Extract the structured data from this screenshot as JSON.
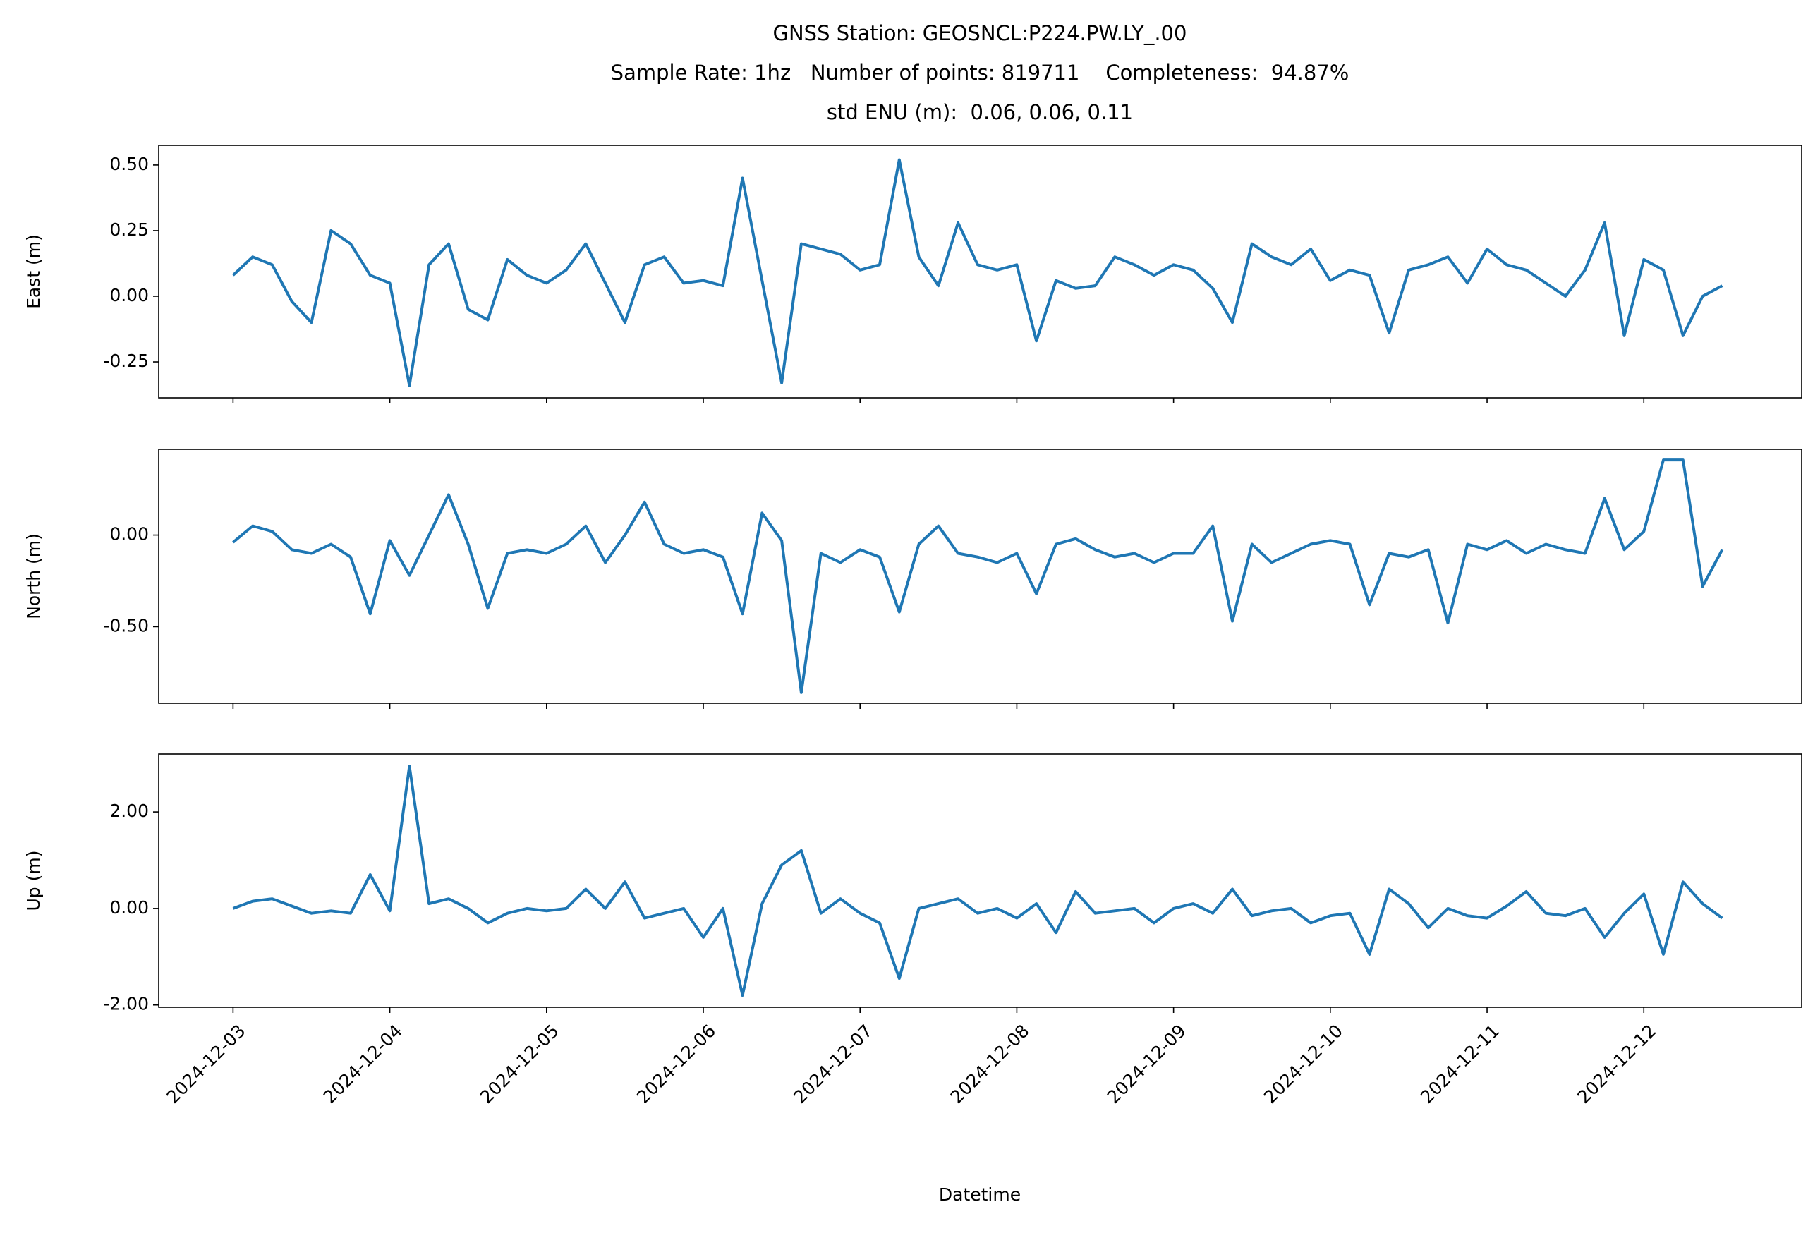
{
  "chart_data": [
    {
      "type": "line",
      "title": [
        "GNSS Station: GEOSNCL:P224.PW.LY_.00",
        "Sample Rate: 1hz   Number of points: 819711    Completeness:  94.87%",
        "std ENU (m):  0.06, 0.06, 0.11"
      ],
      "ylabel": "East (m)",
      "color": "#1f77b4",
      "x": [
        "2024-12-03 00:00",
        "2024-12-03 03:00",
        "2024-12-03 06:00",
        "2024-12-03 09:00",
        "2024-12-03 12:00",
        "2024-12-03 15:00",
        "2024-12-03 18:00",
        "2024-12-03 21:00",
        "2024-12-04 00:00",
        "2024-12-04 03:00",
        "2024-12-04 06:00",
        "2024-12-04 09:00",
        "2024-12-04 12:00",
        "2024-12-04 15:00",
        "2024-12-04 18:00",
        "2024-12-04 21:00",
        "2024-12-05 00:00",
        "2024-12-05 03:00",
        "2024-12-05 06:00",
        "2024-12-05 09:00",
        "2024-12-05 12:00",
        "2024-12-05 15:00",
        "2024-12-05 18:00",
        "2024-12-05 21:00",
        "2024-12-06 00:00",
        "2024-12-06 03:00",
        "2024-12-06 06:00",
        "2024-12-06 09:00",
        "2024-12-06 12:00",
        "2024-12-06 15:00",
        "2024-12-06 18:00",
        "2024-12-06 21:00",
        "2024-12-07 00:00",
        "2024-12-07 03:00",
        "2024-12-07 06:00",
        "2024-12-07 09:00",
        "2024-12-07 12:00",
        "2024-12-07 15:00",
        "2024-12-07 18:00",
        "2024-12-07 21:00",
        "2024-12-08 00:00",
        "2024-12-08 03:00",
        "2024-12-08 06:00",
        "2024-12-08 09:00",
        "2024-12-08 12:00",
        "2024-12-08 15:00",
        "2024-12-08 18:00",
        "2024-12-08 21:00",
        "2024-12-09 00:00",
        "2024-12-09 03:00",
        "2024-12-09 06:00",
        "2024-12-09 09:00",
        "2024-12-09 12:00",
        "2024-12-09 15:00",
        "2024-12-09 18:00",
        "2024-12-09 21:00",
        "2024-12-10 00:00",
        "2024-12-10 03:00",
        "2024-12-10 06:00",
        "2024-12-10 09:00",
        "2024-12-10 12:00",
        "2024-12-10 15:00",
        "2024-12-10 18:00",
        "2024-12-10 21:00",
        "2024-12-11 00:00",
        "2024-12-11 03:00",
        "2024-12-11 06:00",
        "2024-12-11 09:00",
        "2024-12-11 12:00",
        "2024-12-11 15:00",
        "2024-12-11 18:00",
        "2024-12-11 21:00",
        "2024-12-12 00:00",
        "2024-12-12 03:00",
        "2024-12-12 06:00",
        "2024-12-12 09:00",
        "2024-12-12 12:00"
      ],
      "values": [
        0.08,
        0.15,
        0.12,
        -0.02,
        -0.1,
        0.25,
        0.2,
        0.08,
        0.05,
        -0.34,
        0.12,
        0.2,
        -0.05,
        -0.09,
        0.14,
        0.08,
        0.05,
        0.1,
        0.2,
        0.05,
        -0.1,
        0.12,
        0.15,
        0.05,
        0.06,
        0.04,
        0.45,
        0.06,
        -0.33,
        0.2,
        0.18,
        0.16,
        0.1,
        0.12,
        0.52,
        0.15,
        0.04,
        0.28,
        0.12,
        0.1,
        0.12,
        -0.17,
        0.06,
        0.03,
        0.04,
        0.15,
        0.12,
        0.08,
        0.12,
        0.1,
        0.03,
        -0.1,
        0.2,
        0.15,
        0.12,
        0.18,
        0.06,
        0.1,
        0.08,
        -0.14,
        0.1,
        0.12,
        0.15,
        0.05,
        0.18,
        0.12,
        0.1,
        0.05,
        0.0,
        0.1,
        0.28,
        -0.15,
        0.14,
        0.1,
        -0.15,
        0.0,
        0.04
      ],
      "xlim": [
        "2024-12-02 12:37",
        "2024-12-13 00:10"
      ],
      "xticks": [
        "2024-12-03",
        "2024-12-04",
        "2024-12-05",
        "2024-12-06",
        "2024-12-07",
        "2024-12-08",
        "2024-12-09",
        "2024-12-10",
        "2024-12-11",
        "2024-12-12"
      ],
      "ylim": [
        -0.387,
        0.575
      ],
      "yticks": [
        {
          "value": -0.25,
          "label": "-0.25"
        },
        {
          "value": 0,
          "label": "0.00"
        },
        {
          "value": 0.25,
          "label": "0.25"
        },
        {
          "value": 0.5,
          "label": "0.50"
        }
      ]
    },
    {
      "type": "line",
      "ylabel": "North (m)",
      "color": "#1f77b4",
      "x": [
        "2024-12-03 00:00",
        "2024-12-03 03:00",
        "2024-12-03 06:00",
        "2024-12-03 09:00",
        "2024-12-03 12:00",
        "2024-12-03 15:00",
        "2024-12-03 18:00",
        "2024-12-03 21:00",
        "2024-12-04 00:00",
        "2024-12-04 03:00",
        "2024-12-04 06:00",
        "2024-12-04 09:00",
        "2024-12-04 12:00",
        "2024-12-04 15:00",
        "2024-12-04 18:00",
        "2024-12-04 21:00",
        "2024-12-05 00:00",
        "2024-12-05 03:00",
        "2024-12-05 06:00",
        "2024-12-05 09:00",
        "2024-12-05 12:00",
        "2024-12-05 15:00",
        "2024-12-05 18:00",
        "2024-12-05 21:00",
        "2024-12-06 00:00",
        "2024-12-06 03:00",
        "2024-12-06 06:00",
        "2024-12-06 09:00",
        "2024-12-06 12:00",
        "2024-12-06 15:00",
        "2024-12-06 18:00",
        "2024-12-06 21:00",
        "2024-12-07 00:00",
        "2024-12-07 03:00",
        "2024-12-07 06:00",
        "2024-12-07 09:00",
        "2024-12-07 12:00",
        "2024-12-07 15:00",
        "2024-12-07 18:00",
        "2024-12-07 21:00",
        "2024-12-08 00:00",
        "2024-12-08 03:00",
        "2024-12-08 06:00",
        "2024-12-08 09:00",
        "2024-12-08 12:00",
        "2024-12-08 15:00",
        "2024-12-08 18:00",
        "2024-12-08 21:00",
        "2024-12-09 00:00",
        "2024-12-09 03:00",
        "2024-12-09 06:00",
        "2024-12-09 09:00",
        "2024-12-09 12:00",
        "2024-12-09 15:00",
        "2024-12-09 18:00",
        "2024-12-09 21:00",
        "2024-12-10 00:00",
        "2024-12-10 03:00",
        "2024-12-10 06:00",
        "2024-12-10 09:00",
        "2024-12-10 12:00",
        "2024-12-10 15:00",
        "2024-12-10 18:00",
        "2024-12-10 21:00",
        "2024-12-11 00:00",
        "2024-12-11 03:00",
        "2024-12-11 06:00",
        "2024-12-11 09:00",
        "2024-12-11 12:00",
        "2024-12-11 15:00",
        "2024-12-11 18:00",
        "2024-12-11 21:00",
        "2024-12-12 00:00",
        "2024-12-12 03:00",
        "2024-12-12 06:00",
        "2024-12-12 09:00",
        "2024-12-12 12:00"
      ],
      "values": [
        -0.04,
        0.05,
        0.02,
        -0.08,
        -0.1,
        -0.05,
        -0.12,
        -0.43,
        -0.03,
        -0.22,
        0.0,
        0.22,
        -0.05,
        -0.4,
        -0.1,
        -0.08,
        -0.1,
        -0.05,
        0.05,
        -0.15,
        0.0,
        0.18,
        -0.05,
        -0.1,
        -0.08,
        -0.12,
        -0.43,
        0.12,
        -0.03,
        -0.86,
        -0.1,
        -0.15,
        -0.08,
        -0.12,
        -0.42,
        -0.05,
        0.05,
        -0.1,
        -0.12,
        -0.15,
        -0.1,
        -0.32,
        -0.05,
        -0.02,
        -0.08,
        -0.12,
        -0.1,
        -0.15,
        -0.1,
        -0.1,
        0.05,
        -0.47,
        -0.05,
        -0.15,
        -0.1,
        -0.05,
        -0.03,
        -0.05,
        -0.38,
        -0.1,
        -0.12,
        -0.08,
        -0.48,
        -0.05,
        -0.08,
        -0.03,
        -0.1,
        -0.05,
        -0.08,
        -0.1,
        0.2,
        -0.08,
        0.02,
        0.41,
        0.41,
        -0.28,
        -0.08
      ],
      "xlim": [
        "2024-12-02 12:37",
        "2024-12-13 00:10"
      ],
      "xticks": [
        "2024-12-03",
        "2024-12-04",
        "2024-12-05",
        "2024-12-06",
        "2024-12-07",
        "2024-12-08",
        "2024-12-09",
        "2024-12-10",
        "2024-12-11",
        "2024-12-12"
      ],
      "ylim": [
        -0.918,
        0.468
      ],
      "yticks": [
        {
          "value": -0.5,
          "label": "-0.50"
        },
        {
          "value": 0,
          "label": "0.00"
        }
      ]
    },
    {
      "type": "line",
      "ylabel": "Up (m)",
      "xlabel": "Datetime",
      "color": "#1f77b4",
      "x": [
        "2024-12-03 00:00",
        "2024-12-03 03:00",
        "2024-12-03 06:00",
        "2024-12-03 09:00",
        "2024-12-03 12:00",
        "2024-12-03 15:00",
        "2024-12-03 18:00",
        "2024-12-03 21:00",
        "2024-12-04 00:00",
        "2024-12-04 03:00",
        "2024-12-04 06:00",
        "2024-12-04 09:00",
        "2024-12-04 12:00",
        "2024-12-04 15:00",
        "2024-12-04 18:00",
        "2024-12-04 21:00",
        "2024-12-05 00:00",
        "2024-12-05 03:00",
        "2024-12-05 06:00",
        "2024-12-05 09:00",
        "2024-12-05 12:00",
        "2024-12-05 15:00",
        "2024-12-05 18:00",
        "2024-12-05 21:00",
        "2024-12-06 00:00",
        "2024-12-06 03:00",
        "2024-12-06 06:00",
        "2024-12-06 09:00",
        "2024-12-06 12:00",
        "2024-12-06 15:00",
        "2024-12-06 18:00",
        "2024-12-06 21:00",
        "2024-12-07 00:00",
        "2024-12-07 03:00",
        "2024-12-07 06:00",
        "2024-12-07 09:00",
        "2024-12-07 12:00",
        "2024-12-07 15:00",
        "2024-12-07 18:00",
        "2024-12-07 21:00",
        "2024-12-08 00:00",
        "2024-12-08 03:00",
        "2024-12-08 06:00",
        "2024-12-08 09:00",
        "2024-12-08 12:00",
        "2024-12-08 15:00",
        "2024-12-08 18:00",
        "2024-12-08 21:00",
        "2024-12-09 00:00",
        "2024-12-09 03:00",
        "2024-12-09 06:00",
        "2024-12-09 09:00",
        "2024-12-09 12:00",
        "2024-12-09 15:00",
        "2024-12-09 18:00",
        "2024-12-09 21:00",
        "2024-12-10 00:00",
        "2024-12-10 03:00",
        "2024-12-10 06:00",
        "2024-12-10 09:00",
        "2024-12-10 12:00",
        "2024-12-10 15:00",
        "2024-12-10 18:00",
        "2024-12-10 21:00",
        "2024-12-11 00:00",
        "2024-12-11 03:00",
        "2024-12-11 06:00",
        "2024-12-11 09:00",
        "2024-12-11 12:00",
        "2024-12-11 15:00",
        "2024-12-11 18:00",
        "2024-12-11 21:00",
        "2024-12-12 00:00",
        "2024-12-12 03:00",
        "2024-12-12 06:00",
        "2024-12-12 09:00",
        "2024-12-12 12:00"
      ],
      "values": [
        0.0,
        0.15,
        0.2,
        0.05,
        -0.1,
        -0.05,
        -0.1,
        0.7,
        -0.05,
        2.95,
        0.1,
        0.2,
        0.0,
        -0.3,
        -0.1,
        0.0,
        -0.05,
        0.0,
        0.4,
        0.0,
        0.55,
        -0.2,
        -0.1,
        0.0,
        -0.6,
        0.0,
        -1.8,
        0.1,
        0.9,
        1.2,
        -0.1,
        0.2,
        -0.1,
        -0.3,
        -1.45,
        0.0,
        0.1,
        0.2,
        -0.1,
        0.0,
        -0.2,
        0.1,
        -0.5,
        0.35,
        -0.1,
        -0.05,
        0.0,
        -0.3,
        0.0,
        0.1,
        -0.1,
        0.4,
        -0.15,
        -0.05,
        0.0,
        -0.3,
        -0.15,
        -0.1,
        -0.95,
        0.4,
        0.1,
        -0.4,
        0.0,
        -0.15,
        -0.2,
        0.05,
        0.35,
        -0.1,
        -0.15,
        0.0,
        -0.6,
        -0.1,
        0.3,
        -0.95,
        0.55,
        0.1,
        -0.2
      ],
      "xlim": [
        "2024-12-02 12:37",
        "2024-12-13 00:10"
      ],
      "xticks": [
        "2024-12-03",
        "2024-12-04",
        "2024-12-05",
        "2024-12-06",
        "2024-12-07",
        "2024-12-08",
        "2024-12-09",
        "2024-12-10",
        "2024-12-11",
        "2024-12-12"
      ],
      "ylim": [
        -2.048,
        3.2
      ],
      "yticks": [
        {
          "value": -2,
          "label": "-2.00"
        },
        {
          "value": 0,
          "label": "0.00"
        },
        {
          "value": 2,
          "label": "2.00"
        }
      ]
    }
  ]
}
